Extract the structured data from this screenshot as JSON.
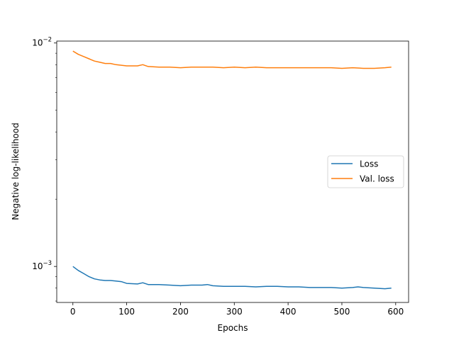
{
  "chart_data": {
    "type": "line",
    "title": "",
    "xlabel": "Epochs",
    "ylabel": "Negative log-likelihood",
    "yscale": "log",
    "xlim": [
      -30,
      624
    ],
    "ylim": [
      0.00069,
      0.0102
    ],
    "grid": false,
    "legend_position": "center-right",
    "x_ticks": [
      0,
      100,
      200,
      300,
      400,
      500,
      600
    ],
    "y_ticks": [
      {
        "value": 0.001,
        "base": "10",
        "exp": "−3"
      },
      {
        "value": 0.01,
        "base": "10",
        "exp": "−2"
      }
    ],
    "series": [
      {
        "name": "Loss",
        "color": "#1f77b4",
        "x": [
          0,
          10,
          20,
          30,
          40,
          50,
          60,
          70,
          80,
          90,
          100,
          120,
          130,
          140,
          160,
          180,
          200,
          220,
          240,
          250,
          260,
          280,
          300,
          320,
          340,
          360,
          380,
          400,
          420,
          440,
          460,
          480,
          500,
          520,
          530,
          540,
          560,
          580,
          592
        ],
        "y": [
          0.001,
          0.00096,
          0.00093,
          0.0009,
          0.00088,
          0.00087,
          0.000865,
          0.000865,
          0.00086,
          0.000855,
          0.00084,
          0.000835,
          0.000845,
          0.00083,
          0.00083,
          0.000825,
          0.00082,
          0.000825,
          0.000825,
          0.00083,
          0.00082,
          0.000815,
          0.000815,
          0.000815,
          0.00081,
          0.000815,
          0.000815,
          0.00081,
          0.00081,
          0.000805,
          0.000805,
          0.000805,
          0.0008,
          0.000805,
          0.00081,
          0.000805,
          0.0008,
          0.000795,
          0.0008
        ]
      },
      {
        "name": "Val. loss",
        "color": "#ff7f0e",
        "x": [
          0,
          10,
          20,
          30,
          40,
          50,
          60,
          70,
          80,
          100,
          120,
          130,
          140,
          160,
          180,
          200,
          220,
          240,
          260,
          280,
          300,
          320,
          340,
          360,
          380,
          400,
          420,
          440,
          460,
          480,
          500,
          520,
          540,
          560,
          580,
          592
        ],
        "y": [
          0.0092,
          0.0089,
          0.0087,
          0.0085,
          0.0083,
          0.0082,
          0.0081,
          0.0081,
          0.008,
          0.0079,
          0.0079,
          0.008,
          0.00785,
          0.0078,
          0.0078,
          0.00775,
          0.0078,
          0.0078,
          0.0078,
          0.00775,
          0.0078,
          0.00775,
          0.0078,
          0.00775,
          0.00775,
          0.00775,
          0.00775,
          0.00775,
          0.00775,
          0.00775,
          0.0077,
          0.00775,
          0.0077,
          0.0077,
          0.00775,
          0.0078
        ]
      }
    ]
  }
}
